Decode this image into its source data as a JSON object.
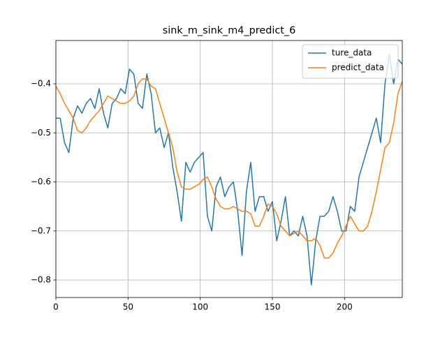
{
  "chart_data": {
    "type": "line",
    "title": "sink_m_sink_m4_predict_6",
    "x": [
      0,
      3,
      6,
      9,
      12,
      15,
      18,
      21,
      24,
      27,
      30,
      33,
      36,
      39,
      42,
      45,
      48,
      51,
      54,
      57,
      60,
      63,
      66,
      69,
      72,
      75,
      78,
      81,
      84,
      87,
      90,
      93,
      96,
      99,
      102,
      105,
      108,
      111,
      114,
      117,
      120,
      123,
      126,
      129,
      132,
      135,
      138,
      141,
      144,
      147,
      150,
      153,
      156,
      159,
      162,
      165,
      168,
      171,
      174,
      177,
      180,
      183,
      186,
      189,
      192,
      195,
      198,
      201,
      204,
      207,
      210,
      213,
      216,
      219,
      222,
      225,
      228,
      231,
      234,
      237,
      240
    ],
    "series": [
      {
        "name": "ture_data",
        "color": "#1f77b4",
        "values": [
          -0.47,
          -0.47,
          -0.52,
          -0.54,
          -0.47,
          -0.445,
          -0.46,
          -0.44,
          -0.43,
          -0.45,
          -0.41,
          -0.46,
          -0.49,
          -0.44,
          -0.43,
          -0.41,
          -0.42,
          -0.37,
          -0.38,
          -0.44,
          -0.45,
          -0.38,
          -0.42,
          -0.5,
          -0.49,
          -0.53,
          -0.5,
          -0.57,
          -0.62,
          -0.68,
          -0.56,
          -0.58,
          -0.56,
          -0.55,
          -0.54,
          -0.67,
          -0.7,
          -0.61,
          -0.59,
          -0.63,
          -0.61,
          -0.6,
          -0.66,
          -0.75,
          -0.62,
          -0.56,
          -0.66,
          -0.63,
          -0.63,
          -0.66,
          -0.64,
          -0.72,
          -0.68,
          -0.63,
          -0.71,
          -0.7,
          -0.71,
          -0.67,
          -0.71,
          -0.81,
          -0.72,
          -0.67,
          -0.67,
          -0.66,
          -0.63,
          -0.66,
          -0.7,
          -0.7,
          -0.65,
          -0.66,
          -0.59,
          -0.56,
          -0.53,
          -0.5,
          -0.47,
          -0.52,
          -0.4,
          -0.34,
          -0.4,
          -0.35,
          -0.36
        ]
      },
      {
        "name": "predict_data",
        "color": "#ff7f0e",
        "values": [
          -0.405,
          -0.42,
          -0.44,
          -0.455,
          -0.47,
          -0.495,
          -0.5,
          -0.49,
          -0.475,
          -0.465,
          -0.455,
          -0.44,
          -0.425,
          -0.43,
          -0.435,
          -0.44,
          -0.44,
          -0.435,
          -0.425,
          -0.4,
          -0.39,
          -0.39,
          -0.405,
          -0.41,
          -0.44,
          -0.47,
          -0.5,
          -0.53,
          -0.58,
          -0.61,
          -0.615,
          -0.615,
          -0.61,
          -0.605,
          -0.595,
          -0.59,
          -0.61,
          -0.635,
          -0.65,
          -0.655,
          -0.655,
          -0.65,
          -0.655,
          -0.66,
          -0.66,
          -0.665,
          -0.69,
          -0.69,
          -0.67,
          -0.645,
          -0.65,
          -0.665,
          -0.69,
          -0.7,
          -0.71,
          -0.705,
          -0.7,
          -0.71,
          -0.72,
          -0.72,
          -0.715,
          -0.73,
          -0.755,
          -0.755,
          -0.745,
          -0.725,
          -0.71,
          -0.69,
          -0.67,
          -0.685,
          -0.7,
          -0.7,
          -0.69,
          -0.66,
          -0.62,
          -0.575,
          -0.53,
          -0.52,
          -0.48,
          -0.42,
          -0.395
        ]
      }
    ],
    "xlim": [
      0,
      240
    ],
    "xticks": [
      0,
      50,
      100,
      150,
      200
    ],
    "ylim": [
      -0.8356,
      -0.3117
    ],
    "yticks": [
      {
        "value": -0.8,
        "label": "−0.8"
      },
      {
        "value": -0.7,
        "label": "−0.7"
      },
      {
        "value": -0.6,
        "label": "−0.6"
      },
      {
        "value": -0.5,
        "label": "−0.5"
      },
      {
        "value": -0.4,
        "label": "−0.4"
      }
    ],
    "grid": true,
    "legend": "upper right"
  }
}
